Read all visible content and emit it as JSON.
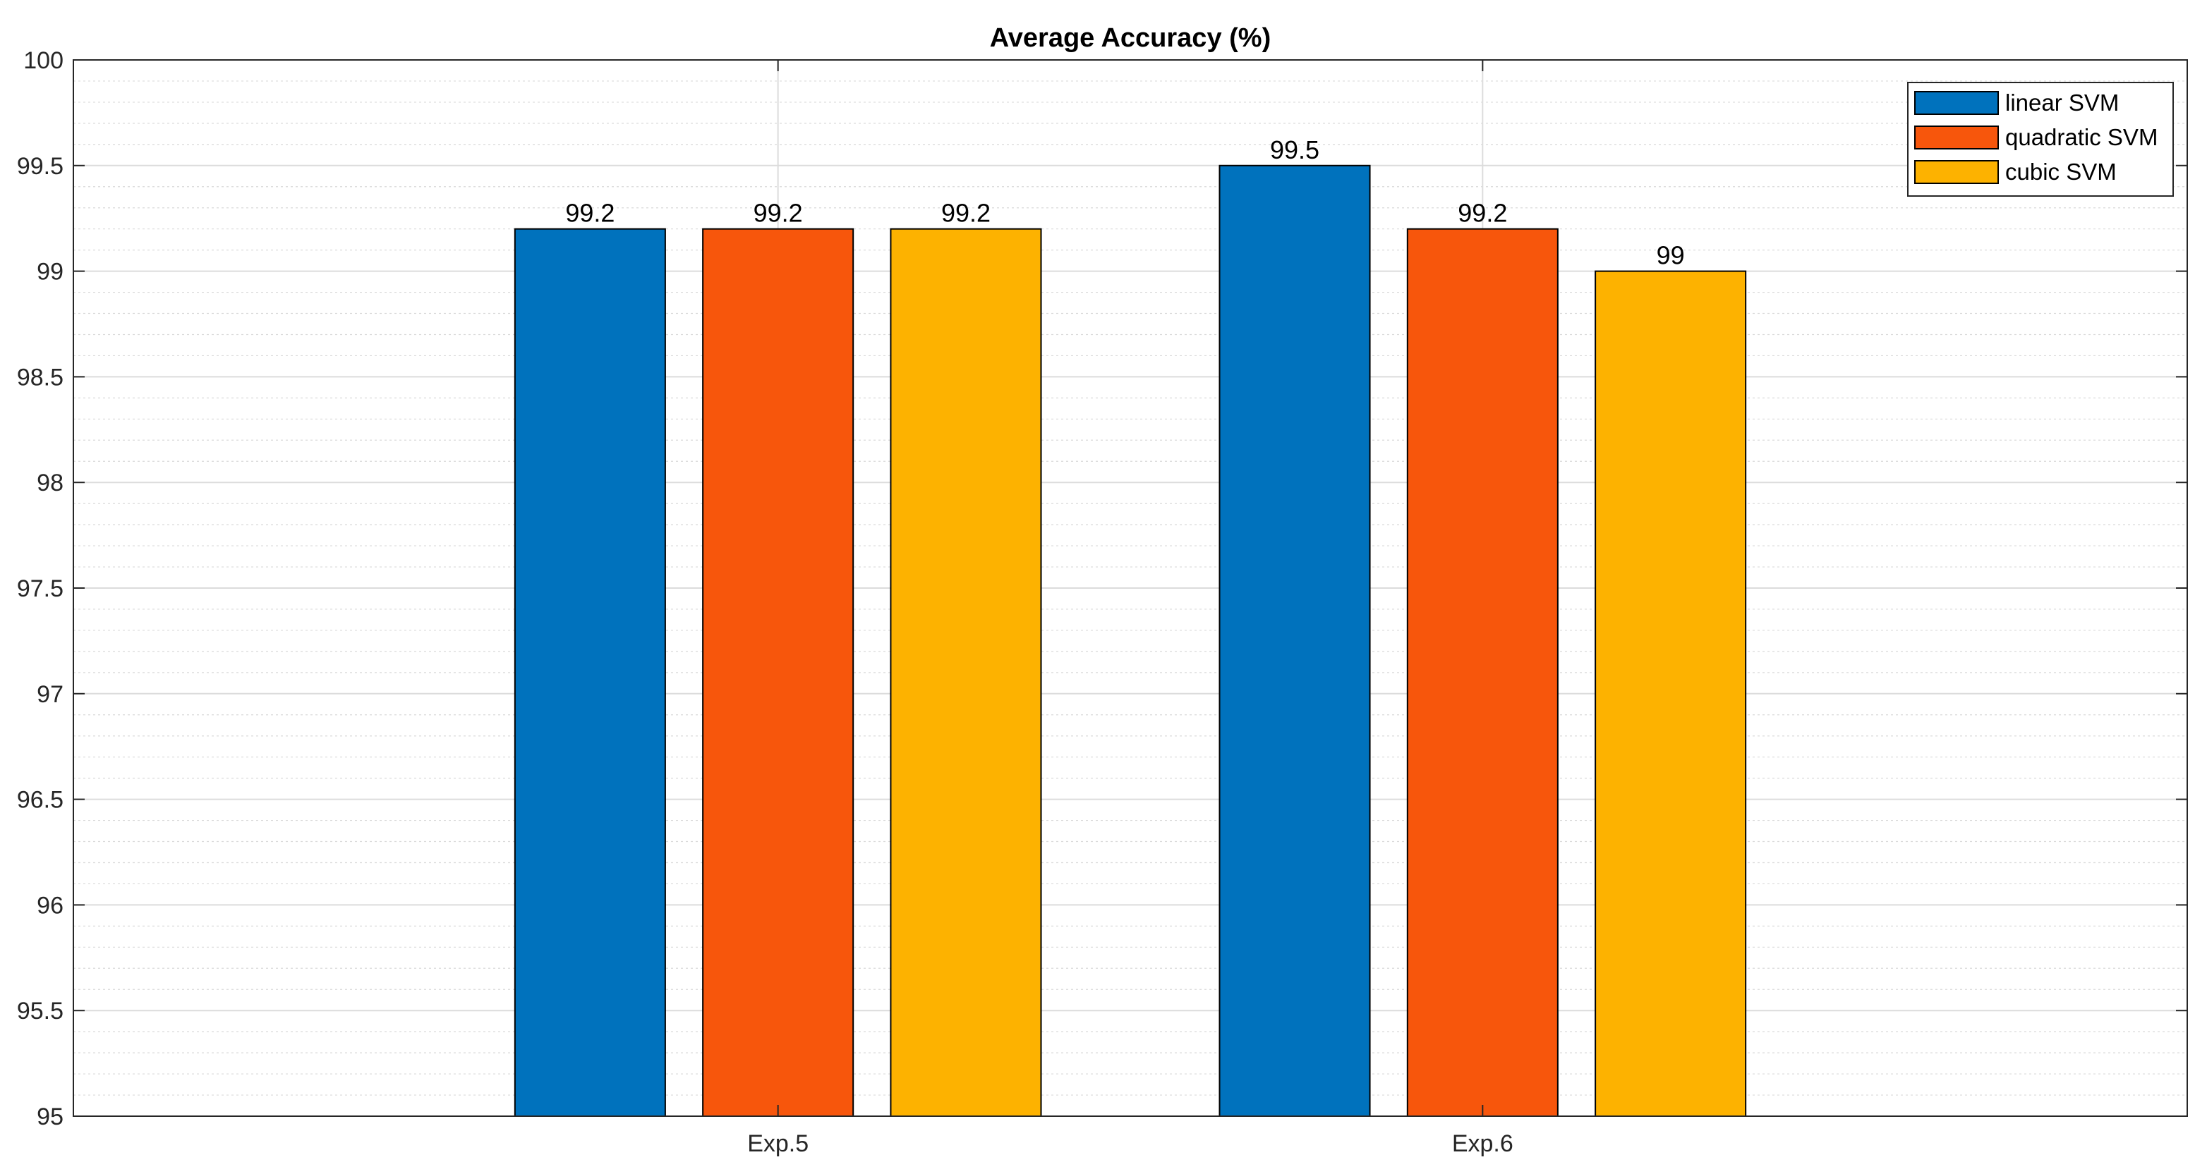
{
  "chart_data": {
    "type": "bar",
    "title": "Average Accuracy (%)",
    "xlabel": "",
    "ylabel": "",
    "categories": [
      "Exp.5",
      "Exp.6"
    ],
    "series": [
      {
        "name": "linear SVM",
        "color": "#0072BD",
        "values": [
          99.2,
          99.5
        ]
      },
      {
        "name": "quadratic SVM",
        "color": "#F7560C",
        "values": [
          99.2,
          99.2
        ]
      },
      {
        "name": "cubic SVM",
        "color": "#FDB200",
        "values": [
          99.2,
          99
        ]
      }
    ],
    "data_labels": [
      [
        "99.2",
        "99.5"
      ],
      [
        "99.2",
        "99.2"
      ],
      [
        "99.2",
        "99"
      ]
    ],
    "ylim": [
      95,
      100
    ],
    "yticks": [
      "95",
      "95.5",
      "96",
      "96.5",
      "97",
      "97.5",
      "98",
      "98.5",
      "99",
      "99.5",
      "100"
    ],
    "grid": true,
    "minor_grid": true,
    "legend_position": "top-right"
  }
}
